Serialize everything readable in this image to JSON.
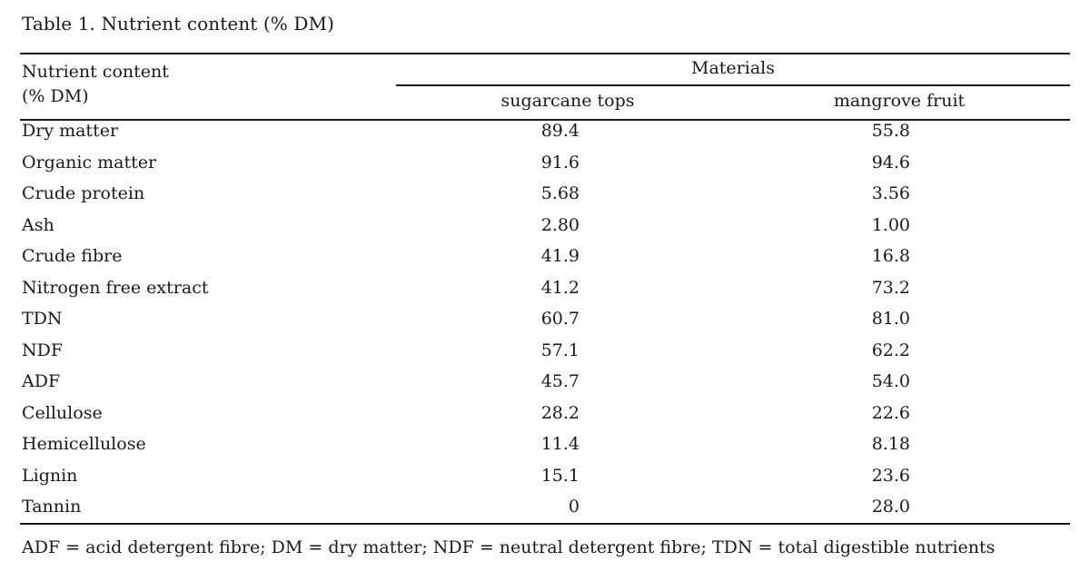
{
  "caption": "Table 1. Nutrient content (% DM)",
  "header": {
    "row_label_line1": "Nutrient content",
    "row_label_line2": "(% DM)",
    "group": "Materials",
    "columns": [
      "sugarcane tops",
      "mangrove fruit"
    ]
  },
  "rows": [
    {
      "label": "Dry matter",
      "v1": "89.4",
      "v2": "55.8"
    },
    {
      "label": "Organic matter",
      "v1": "91.6",
      "v2": "94.6"
    },
    {
      "label": "Crude protein",
      "v1": "5.68",
      "v2": "3.56"
    },
    {
      "label": "Ash",
      "v1": "2.80",
      "v2": "1.00"
    },
    {
      "label": "Crude fibre",
      "v1": "41.9",
      "v2": "16.8"
    },
    {
      "label": "Nitrogen free extract",
      "v1": "41.2",
      "v2": "73.2"
    },
    {
      "label": "TDN",
      "v1": "60.7",
      "v2": "81.0"
    },
    {
      "label": "NDF",
      "v1": "57.1",
      "v2": "62.2"
    },
    {
      "label": "ADF",
      "v1": "45.7",
      "v2": "54.0"
    },
    {
      "label": "Cellulose",
      "v1": "28.2",
      "v2": "22.6"
    },
    {
      "label": "Hemicellulose",
      "v1": "11.4",
      "v2": "8.18"
    },
    {
      "label": "Lignin",
      "v1": "15.1",
      "v2": "23.6"
    },
    {
      "label": "Tannin",
      "v1": "0",
      "v2": "28.0"
    }
  ],
  "footnote": "ADF = acid detergent fibre; DM = dry matter; NDF = neutral detergent fibre; TDN = total digestible nutrients"
}
